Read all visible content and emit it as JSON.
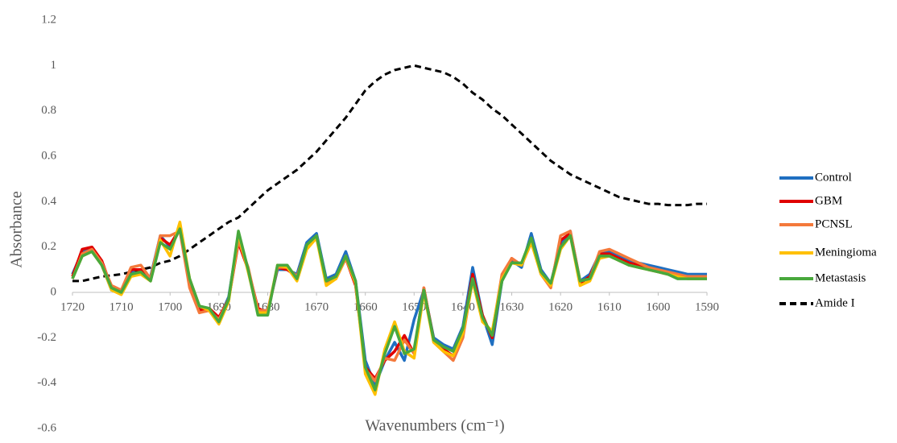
{
  "chart_data": {
    "type": "line",
    "ylabel": "Absorbance",
    "xlabel": "Wavenumbers (cm⁻¹)",
    "xlim": [
      1720,
      1590
    ],
    "xticks": [
      1720,
      1710,
      1700,
      1690,
      1680,
      1670,
      1660,
      1650,
      1640,
      1630,
      1620,
      1610,
      1600,
      1590
    ],
    "ylim": [
      -0.6,
      1.2
    ],
    "yticks": [
      -0.6,
      -0.4,
      -0.2,
      0,
      0.2,
      0.4,
      0.6,
      0.8,
      1,
      1.2
    ],
    "grid": false,
    "legend": "right",
    "x": [
      1720,
      1718,
      1716,
      1714,
      1712,
      1710,
      1708,
      1706,
      1704,
      1702,
      1700,
      1698,
      1696,
      1694,
      1692,
      1690,
      1688,
      1686,
      1684,
      1682,
      1680,
      1678,
      1676,
      1674,
      1672,
      1670,
      1668,
      1666,
      1664,
      1662,
      1660,
      1658,
      1656,
      1654,
      1652,
      1650,
      1648,
      1646,
      1644,
      1642,
      1640,
      1638,
      1636,
      1634,
      1632,
      1630,
      1628,
      1626,
      1624,
      1622,
      1620,
      1618,
      1616,
      1614,
      1612,
      1610,
      1608,
      1606,
      1604,
      1602,
      1600,
      1598,
      1596,
      1594,
      1592,
      1590
    ],
    "series": [
      {
        "name": "Control",
        "color": "#1f6fc1",
        "dash": false,
        "values": [
          0.08,
          0.18,
          0.19,
          0.12,
          0.01,
          0.01,
          0.09,
          0.08,
          0.07,
          0.25,
          0.2,
          0.29,
          0.05,
          -0.07,
          -0.07,
          -0.12,
          -0.02,
          0.25,
          0.1,
          -0.08,
          -0.08,
          0.1,
          0.1,
          0.08,
          0.22,
          0.26,
          0.06,
          0.08,
          0.18,
          0.05,
          -0.3,
          -0.41,
          -0.3,
          -0.22,
          -0.3,
          -0.12,
          0.01,
          -0.2,
          -0.23,
          -0.25,
          -0.15,
          0.11,
          -0.1,
          -0.23,
          0.05,
          0.14,
          0.11,
          0.26,
          0.1,
          0.04,
          0.21,
          0.27,
          0.05,
          0.08,
          0.17,
          0.18,
          0.16,
          0.14,
          0.13,
          0.12,
          0.11,
          0.1,
          0.09,
          0.08,
          0.08,
          0.08
        ]
      },
      {
        "name": "GBM",
        "color": "#e00000",
        "dash": false,
        "values": [
          0.07,
          0.19,
          0.2,
          0.14,
          0.02,
          0.0,
          0.1,
          0.1,
          0.06,
          0.24,
          0.21,
          0.28,
          0.04,
          -0.08,
          -0.07,
          -0.11,
          -0.03,
          0.22,
          0.1,
          -0.07,
          -0.09,
          0.11,
          0.1,
          0.07,
          0.2,
          0.24,
          0.05,
          0.07,
          0.15,
          0.03,
          -0.33,
          -0.38,
          -0.3,
          -0.26,
          -0.19,
          -0.27,
          0.02,
          -0.21,
          -0.25,
          -0.28,
          -0.17,
          0.08,
          -0.1,
          -0.2,
          0.06,
          0.15,
          0.12,
          0.22,
          0.09,
          0.03,
          0.23,
          0.26,
          0.04,
          0.07,
          0.17,
          0.17,
          0.15,
          0.13,
          0.12,
          0.1,
          0.09,
          0.08,
          0.07,
          0.07,
          0.07,
          0.07
        ]
      },
      {
        "name": "PCNSL",
        "color": "#f4793b",
        "dash": false,
        "values": [
          0.06,
          0.17,
          0.19,
          0.13,
          0.03,
          0.01,
          0.11,
          0.12,
          0.06,
          0.25,
          0.25,
          0.27,
          0.02,
          -0.09,
          -0.08,
          -0.12,
          -0.03,
          0.23,
          0.11,
          -0.08,
          -0.08,
          0.11,
          0.11,
          0.07,
          0.2,
          0.25,
          0.04,
          0.06,
          0.15,
          0.04,
          -0.34,
          -0.39,
          -0.29,
          -0.3,
          -0.21,
          -0.27,
          0.02,
          -0.22,
          -0.26,
          -0.3,
          -0.2,
          0.06,
          -0.12,
          -0.18,
          0.08,
          0.15,
          0.12,
          0.23,
          0.08,
          0.02,
          0.25,
          0.27,
          0.05,
          0.06,
          0.18,
          0.19,
          0.17,
          0.15,
          0.13,
          0.11,
          0.1,
          0.09,
          0.08,
          0.07,
          0.07,
          0.07
        ]
      },
      {
        "name": "Meningioma",
        "color": "#ffc000",
        "dash": false,
        "values": [
          0.06,
          0.16,
          0.18,
          0.12,
          0.01,
          -0.01,
          0.07,
          0.08,
          0.05,
          0.23,
          0.16,
          0.31,
          0.06,
          -0.06,
          -0.08,
          -0.14,
          -0.04,
          0.26,
          0.09,
          -0.09,
          -0.09,
          0.12,
          0.11,
          0.05,
          0.19,
          0.24,
          0.03,
          0.06,
          0.16,
          0.04,
          -0.36,
          -0.45,
          -0.25,
          -0.13,
          -0.26,
          -0.29,
          0.0,
          -0.22,
          -0.26,
          -0.28,
          -0.18,
          0.05,
          -0.13,
          -0.17,
          0.06,
          0.13,
          0.12,
          0.22,
          0.08,
          0.03,
          0.19,
          0.25,
          0.03,
          0.05,
          0.15,
          0.16,
          0.14,
          0.12,
          0.11,
          0.1,
          0.09,
          0.08,
          0.07,
          0.06,
          0.06,
          0.06
        ]
      },
      {
        "name": "Metastasis",
        "color": "#48a83c",
        "dash": false,
        "values": [
          0.06,
          0.16,
          0.18,
          0.12,
          0.02,
          0.0,
          0.08,
          0.09,
          0.05,
          0.22,
          0.19,
          0.28,
          0.06,
          -0.06,
          -0.07,
          -0.13,
          -0.03,
          0.27,
          0.1,
          -0.1,
          -0.1,
          0.12,
          0.12,
          0.06,
          0.21,
          0.25,
          0.05,
          0.07,
          0.16,
          0.05,
          -0.33,
          -0.43,
          -0.27,
          -0.15,
          -0.27,
          -0.25,
          0.01,
          -0.21,
          -0.24,
          -0.26,
          -0.16,
          0.06,
          -0.11,
          -0.19,
          0.05,
          0.13,
          0.13,
          0.24,
          0.09,
          0.04,
          0.2,
          0.25,
          0.05,
          0.06,
          0.16,
          0.16,
          0.14,
          0.12,
          0.11,
          0.1,
          0.09,
          0.08,
          0.06,
          0.06,
          0.06,
          0.06
        ]
      },
      {
        "name": "Amide I",
        "color": "#000000",
        "dash": true,
        "values": [
          0.05,
          0.05,
          0.06,
          0.07,
          0.075,
          0.08,
          0.09,
          0.1,
          0.11,
          0.13,
          0.14,
          0.16,
          0.19,
          0.22,
          0.25,
          0.28,
          0.31,
          0.33,
          0.37,
          0.41,
          0.45,
          0.48,
          0.51,
          0.54,
          0.58,
          0.62,
          0.67,
          0.72,
          0.77,
          0.83,
          0.89,
          0.93,
          0.96,
          0.98,
          0.99,
          1.0,
          0.99,
          0.98,
          0.97,
          0.95,
          0.92,
          0.88,
          0.85,
          0.81,
          0.78,
          0.74,
          0.7,
          0.66,
          0.62,
          0.58,
          0.55,
          0.52,
          0.5,
          0.48,
          0.46,
          0.44,
          0.42,
          0.41,
          0.4,
          0.39,
          0.39,
          0.385,
          0.385,
          0.385,
          0.39,
          0.39
        ]
      }
    ]
  }
}
